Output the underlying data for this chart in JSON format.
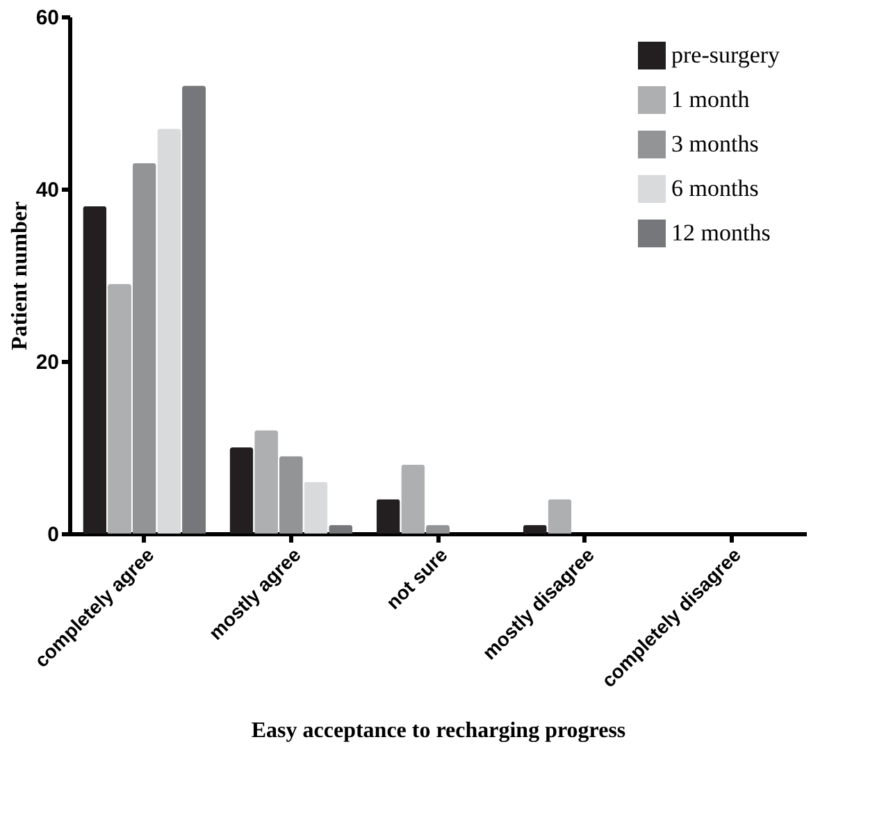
{
  "chart_data": {
    "type": "bar",
    "xlabel": "Easy acceptance to recharging progress",
    "ylabel": "Patient number",
    "categories": [
      "completely agree",
      "mostly agree",
      "not sure",
      "mostly disagree",
      "completely disagree"
    ],
    "series": [
      {
        "name": "pre-surgery",
        "color": "#231f20",
        "values": [
          38,
          10,
          4,
          1,
          0
        ]
      },
      {
        "name": "1 month",
        "color": "#aeafb1",
        "values": [
          29,
          12,
          8,
          4,
          0
        ]
      },
      {
        "name": "3 months",
        "color": "#939496",
        "values": [
          43,
          9,
          1,
          0,
          0
        ]
      },
      {
        "name": "6 months",
        "color": "#d9dadc",
        "values": [
          47,
          6,
          0,
          0,
          0
        ]
      },
      {
        "name": "12 months",
        "color": "#76777a",
        "values": [
          52,
          1,
          0,
          0,
          0
        ]
      }
    ],
    "ylim": [
      0,
      60
    ],
    "yticks": [
      0,
      20,
      40,
      60
    ],
    "grid": false,
    "legend": "top right"
  }
}
